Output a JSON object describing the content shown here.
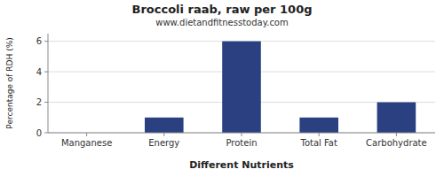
{
  "chart_data": {
    "type": "bar",
    "title": "Broccoli raab, raw per 100g",
    "subtitle": "www.dietandfitnesstoday.com",
    "xlabel": "Different Nutrients",
    "ylabel": "Percentage of RDH (%)",
    "categories": [
      "Manganese",
      "Energy",
      "Protein",
      "Total Fat",
      "Carbohydrate"
    ],
    "values": [
      0.0,
      1.0,
      6.0,
      1.0,
      2.0
    ],
    "color": "#2a4080",
    "ylim": [
      0,
      6.5
    ],
    "yticks": [
      0,
      2,
      4,
      6
    ],
    "grid": true
  }
}
